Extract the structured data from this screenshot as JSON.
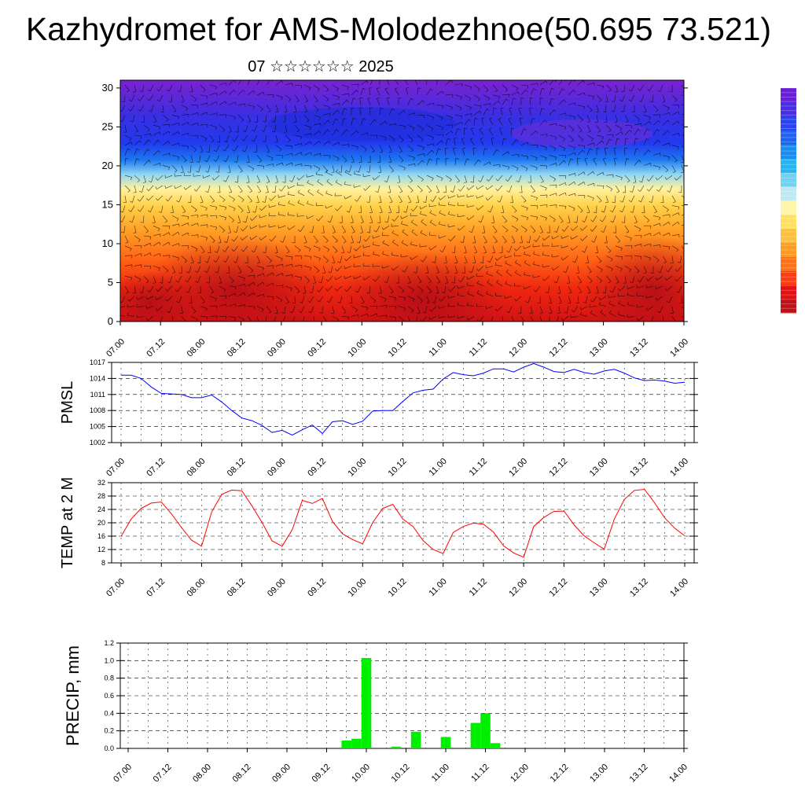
{
  "title": "Kazhydromet for AMS-Molodezhnoe(50.695 73.521)",
  "subtitle": "07 ☆☆☆☆☆☆ 2025",
  "time_labels": [
    "07.00",
    "07.12",
    "08.00",
    "08.12",
    "09.00",
    "09.12",
    "10.00",
    "10.12",
    "11.00",
    "11.12",
    "12.00",
    "12.12",
    "13.00",
    "13.12",
    "14.00"
  ],
  "colors": {
    "pmsl_line": "#0000ff",
    "temp_line": "#ff0000",
    "precip_bar": "#00ee00",
    "colorbar": [
      "#6a1fd6",
      "#4a2ee6",
      "#2b44f0",
      "#1f63f2",
      "#1a8cf2",
      "#28b4f0",
      "#6ed2f0",
      "#bfe8f2",
      "#fff6a8",
      "#ffe066",
      "#ffbf3a",
      "#ff9a22",
      "#ff7018",
      "#ff3c10",
      "#e21212",
      "#c01018"
    ]
  },
  "chart_data": [
    {
      "type": "heatmap",
      "name": "temperature-height cross-section with wind barbs",
      "xlabel": "",
      "ylabel": "",
      "x_ticks": [
        "07.00",
        "07.12",
        "08.00",
        "08.12",
        "09.00",
        "09.12",
        "10.00",
        "10.12",
        "11.00",
        "11.12",
        "12.00",
        "12.12",
        "13.00",
        "13.12",
        "14.00"
      ],
      "y_ticks": [
        0,
        5,
        10,
        15,
        20,
        25,
        30
      ],
      "ylim": [
        0,
        31
      ],
      "color_bands": [
        {
          "from": 0,
          "to": 6,
          "level": "red"
        },
        {
          "from": 6,
          "to": 12,
          "level": "orange"
        },
        {
          "from": 12,
          "to": 16.5,
          "level": "yellow"
        },
        {
          "from": 16.5,
          "to": 19,
          "level": "light-blue"
        },
        {
          "from": 19,
          "to": 23,
          "level": "blue"
        },
        {
          "from": 23,
          "to": 31,
          "level": "violet"
        }
      ]
    },
    {
      "type": "line",
      "ylabel": "PMSL",
      "ylim": [
        1002,
        1017
      ],
      "y_ticks": [
        1002,
        1005,
        1008,
        1011,
        1014,
        1017
      ],
      "x_ticks": [
        "07.00",
        "07.12",
        "08.00",
        "08.12",
        "09.00",
        "09.12",
        "10.00",
        "10.12",
        "11.00",
        "11.12",
        "12.00",
        "12.12",
        "13.00",
        "13.12",
        "14.00"
      ],
      "series": [
        {
          "values": [
            1014.6,
            1014.6,
            1014.0,
            1012.4,
            1011.2,
            1011.1,
            1011.0,
            1010.4,
            1010.4,
            1010.9,
            1009.6,
            1008.0,
            1006.6,
            1006.1,
            1005.2,
            1003.9,
            1004.3,
            1003.4,
            1004.4,
            1005.3,
            1003.7,
            1005.9,
            1006.1,
            1005.4,
            1006.0,
            1007.9,
            1008.0,
            1008.0,
            1009.7,
            1011.3,
            1011.8,
            1012.0,
            1013.9,
            1015.1,
            1014.7,
            1014.5,
            1015.0,
            1015.8,
            1015.8,
            1015.2,
            1016.1,
            1016.8,
            1016.1,
            1015.3,
            1015.1,
            1015.7,
            1015.1,
            1014.8,
            1015.4,
            1015.7,
            1015.0,
            1014.1,
            1013.6,
            1013.7,
            1013.5,
            1013.1,
            1013.3
          ]
        }
      ]
    },
    {
      "type": "line",
      "ylabel": "TEMP at 2 M",
      "ylim": [
        8,
        32
      ],
      "y_ticks": [
        8,
        12,
        16,
        20,
        24,
        28,
        32
      ],
      "x_ticks": [
        "07.00",
        "07.12",
        "08.00",
        "08.12",
        "09.00",
        "09.12",
        "10.00",
        "10.12",
        "11.00",
        "11.12",
        "12.00",
        "12.12",
        "13.00",
        "13.12",
        "14.00"
      ],
      "series": [
        {
          "values": [
            15.9,
            21.1,
            24.3,
            25.9,
            26.2,
            22.7,
            18.6,
            14.8,
            13.0,
            23.2,
            28.5,
            29.8,
            29.6,
            25.1,
            20.1,
            14.6,
            13.0,
            17.9,
            26.7,
            25.8,
            27.3,
            20.4,
            16.7,
            15.0,
            13.7,
            20.1,
            24.3,
            25.5,
            21.1,
            18.9,
            14.7,
            12.0,
            10.8,
            17.1,
            18.9,
            19.9,
            19.6,
            17.2,
            13.1,
            11.0,
            9.7,
            18.9,
            21.6,
            23.4,
            23.5,
            19.4,
            16.1,
            14.0,
            12.1,
            21.1,
            27.0,
            29.7,
            30.0,
            26.0,
            21.5,
            18.4,
            16.1
          ]
        }
      ]
    },
    {
      "type": "bar",
      "ylabel": "PRECIP, mm",
      "ylim": [
        0,
        1.2
      ],
      "y_ticks": [
        "0.0",
        "0.2",
        "0.4",
        "0.6",
        "0.8",
        "1.0",
        "1.2"
      ],
      "x_ticks": [
        "07.00",
        "07.12",
        "08.00",
        "08.12",
        "09.00",
        "09.12",
        "10.00",
        "10.12",
        "11.00",
        "11.12",
        "12.00",
        "12.12",
        "13.00",
        "13.12",
        "14.00"
      ],
      "bars": [
        {
          "t": 9.75,
          "v": 0.09
        },
        {
          "t": 9.875,
          "v": 0.11
        },
        {
          "t": 10.0,
          "v": 1.03
        },
        {
          "t": 10.375,
          "v": 0.02
        },
        {
          "t": 10.625,
          "v": 0.19
        },
        {
          "t": 11.0,
          "v": 0.13
        },
        {
          "t": 11.375,
          "v": 0.29
        },
        {
          "t": 11.5,
          "v": 0.4
        },
        {
          "t": 11.625,
          "v": 0.06
        }
      ]
    }
  ]
}
